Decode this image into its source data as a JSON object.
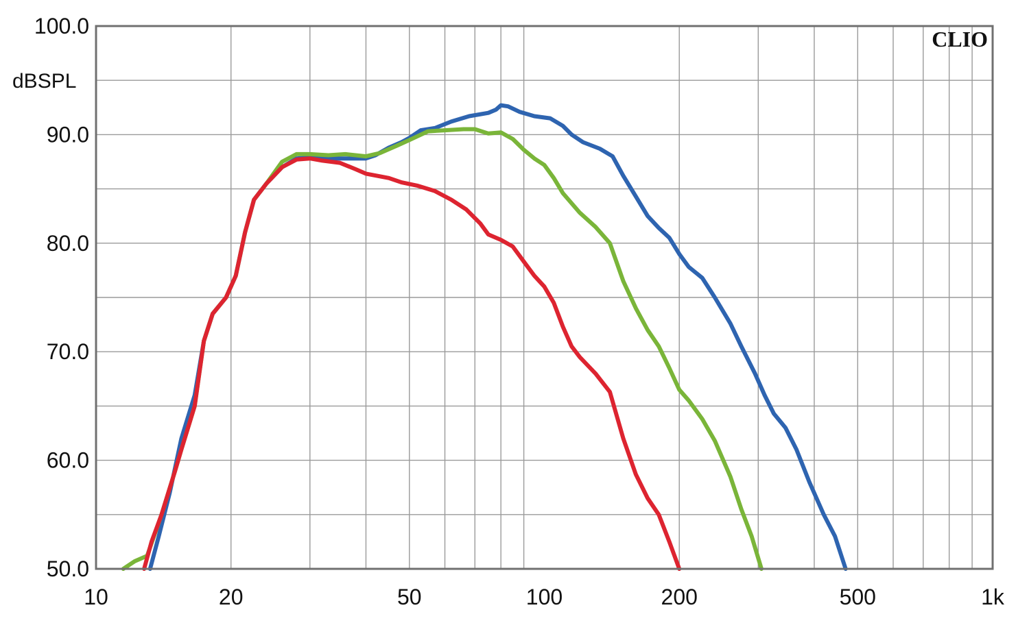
{
  "chart_data": {
    "type": "line",
    "xscale": "log",
    "xlim": [
      10,
      1000
    ],
    "ylim": [
      50,
      100
    ],
    "ylabel": "dBSPL",
    "brand": "CLIO",
    "grid": true,
    "xticks": [
      {
        "value": 10,
        "label": "10"
      },
      {
        "value": 20,
        "label": "20"
      },
      {
        "value": 50,
        "label": "50"
      },
      {
        "value": 100,
        "label": "100"
      },
      {
        "value": 200,
        "label": "200"
      },
      {
        "value": 500,
        "label": "500"
      },
      {
        "value": 1000,
        "label": "1k"
      }
    ],
    "yticks": [
      {
        "value": 50,
        "label": "50.0"
      },
      {
        "value": 60,
        "label": "60.0"
      },
      {
        "value": 70,
        "label": "70.0"
      },
      {
        "value": 80,
        "label": "80.0"
      },
      {
        "value": 90,
        "label": "90.0"
      },
      {
        "value": 100,
        "label": "100.0"
      }
    ],
    "series": [
      {
        "color": "#2e64b0",
        "points": [
          [
            13.2,
            50
          ],
          [
            13.8,
            53
          ],
          [
            14.6,
            57
          ],
          [
            15.5,
            62
          ],
          [
            16.6,
            66
          ],
          [
            17.4,
            71
          ],
          [
            18.2,
            73.5
          ],
          [
            19.5,
            75
          ],
          [
            20.5,
            77
          ],
          [
            21.5,
            81
          ],
          [
            22.5,
            84
          ],
          [
            24,
            85.5
          ],
          [
            26,
            87
          ],
          [
            28,
            87.8
          ],
          [
            30,
            87.9
          ],
          [
            33,
            87.8
          ],
          [
            36,
            87.8
          ],
          [
            40,
            87.8
          ],
          [
            42,
            88.1
          ],
          [
            45,
            88.8
          ],
          [
            48,
            89.3
          ],
          [
            50,
            89.7
          ],
          [
            53,
            90.4
          ],
          [
            57,
            90.6
          ],
          [
            62,
            91.2
          ],
          [
            68,
            91.7
          ],
          [
            75,
            92
          ],
          [
            78,
            92.3
          ],
          [
            80,
            92.7
          ],
          [
            83,
            92.6
          ],
          [
            88,
            92.1
          ],
          [
            95,
            91.7
          ],
          [
            103,
            91.5
          ],
          [
            110,
            90.8
          ],
          [
            115,
            90
          ],
          [
            122,
            89.3
          ],
          [
            133,
            88.7
          ],
          [
            142,
            88
          ],
          [
            150,
            86.2
          ],
          [
            160,
            84.3
          ],
          [
            170,
            82.5
          ],
          [
            180,
            81.4
          ],
          [
            190,
            80.5
          ],
          [
            200,
            79
          ],
          [
            210,
            77.8
          ],
          [
            225,
            76.8
          ],
          [
            240,
            75
          ],
          [
            260,
            72.6
          ],
          [
            275,
            70.5
          ],
          [
            295,
            68
          ],
          [
            310,
            66
          ],
          [
            325,
            64.3
          ],
          [
            345,
            63
          ],
          [
            365,
            61
          ],
          [
            390,
            58
          ],
          [
            420,
            55
          ],
          [
            445,
            53
          ],
          [
            470,
            50
          ]
        ]
      },
      {
        "color": "#7ab539",
        "points": [
          [
            11.5,
            50
          ],
          [
            12.2,
            50.7
          ],
          [
            13,
            51.2
          ],
          [
            14,
            55
          ],
          [
            15,
            59
          ],
          [
            15.5,
            61
          ],
          [
            16.6,
            65
          ],
          [
            17.4,
            71
          ],
          [
            18.2,
            73.5
          ],
          [
            19.5,
            75
          ],
          [
            20.5,
            77
          ],
          [
            21.5,
            81
          ],
          [
            22.5,
            84
          ],
          [
            24,
            85.5
          ],
          [
            26,
            87.5
          ],
          [
            28,
            88.2
          ],
          [
            30,
            88.2
          ],
          [
            33,
            88.1
          ],
          [
            36,
            88.2
          ],
          [
            40,
            88
          ],
          [
            43,
            88.3
          ],
          [
            47,
            89
          ],
          [
            50,
            89.5
          ],
          [
            55,
            90.3
          ],
          [
            60,
            90.4
          ],
          [
            66,
            90.5
          ],
          [
            70,
            90.5
          ],
          [
            75,
            90.1
          ],
          [
            80,
            90.2
          ],
          [
            85,
            89.6
          ],
          [
            90,
            88.6
          ],
          [
            95,
            87.8
          ],
          [
            100,
            87.2
          ],
          [
            105,
            86
          ],
          [
            110,
            84.6
          ],
          [
            120,
            82.8
          ],
          [
            130,
            81.5
          ],
          [
            140,
            80
          ],
          [
            150,
            76.5
          ],
          [
            160,
            74
          ],
          [
            170,
            72
          ],
          [
            180,
            70.5
          ],
          [
            190,
            68.5
          ],
          [
            200,
            66.5
          ],
          [
            210,
            65.5
          ],
          [
            225,
            63.8
          ],
          [
            240,
            61.8
          ],
          [
            260,
            58.5
          ],
          [
            275,
            55.5
          ],
          [
            290,
            53
          ],
          [
            305,
            50
          ]
        ]
      },
      {
        "color": "#dd2430",
        "points": [
          [
            12.8,
            50
          ],
          [
            13.3,
            52.5
          ],
          [
            14,
            55
          ],
          [
            15,
            59
          ],
          [
            15.5,
            61
          ],
          [
            16.6,
            65
          ],
          [
            17.4,
            71
          ],
          [
            18.2,
            73.5
          ],
          [
            19.5,
            75
          ],
          [
            20.5,
            77
          ],
          [
            21.5,
            81
          ],
          [
            22.5,
            84
          ],
          [
            24,
            85.5
          ],
          [
            26,
            87
          ],
          [
            28,
            87.7
          ],
          [
            30,
            87.8
          ],
          [
            32,
            87.6
          ],
          [
            35,
            87.4
          ],
          [
            38,
            86.8
          ],
          [
            40,
            86.4
          ],
          [
            45,
            86
          ],
          [
            48,
            85.6
          ],
          [
            52,
            85.3
          ],
          [
            57,
            84.8
          ],
          [
            62,
            84
          ],
          [
            67,
            83.1
          ],
          [
            72,
            81.8
          ],
          [
            75,
            80.8
          ],
          [
            80,
            80.3
          ],
          [
            85,
            79.7
          ],
          [
            90,
            78.3
          ],
          [
            95,
            77
          ],
          [
            100,
            76
          ],
          [
            105,
            74.5
          ],
          [
            110,
            72.3
          ],
          [
            115,
            70.5
          ],
          [
            120,
            69.5
          ],
          [
            130,
            68
          ],
          [
            140,
            66.3
          ],
          [
            150,
            62
          ],
          [
            160,
            58.7
          ],
          [
            170,
            56.5
          ],
          [
            180,
            55
          ],
          [
            190,
            52.5
          ],
          [
            200,
            50
          ]
        ]
      }
    ]
  }
}
